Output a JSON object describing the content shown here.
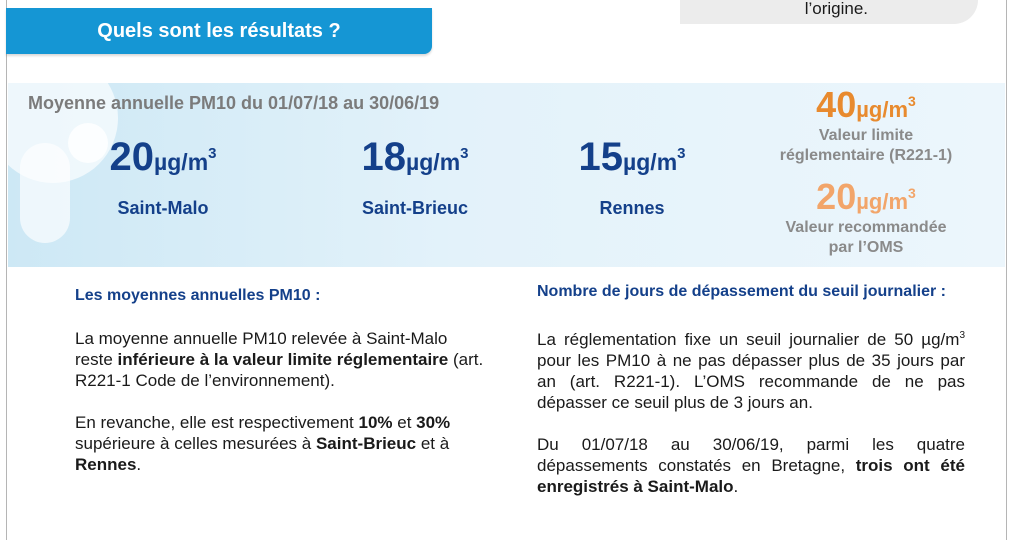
{
  "top_note": {
    "text": "l’origine."
  },
  "header": {
    "title": "Quels sont les résultats ?"
  },
  "band": {
    "title": "Moyenne annuelle PM10 du 01/07/18 au 30/06/19",
    "unit": "µg/m",
    "unit_exp": "3",
    "cities": [
      {
        "value": "20",
        "name": "Saint-Malo"
      },
      {
        "value": "18",
        "name": "Saint-Brieuc"
      },
      {
        "value": "15",
        "name": "Rennes"
      }
    ],
    "limit": {
      "value": "40",
      "label_1": "Valeur limite",
      "label_2": "réglementaire (R221-1)"
    },
    "who": {
      "value": "20",
      "label_1": "Valeur recommandée",
      "label_2": "par l’OMS"
    },
    "colors": {
      "city_blue": "#14408a",
      "limit_orange": "#e88a2e",
      "who_orange": "#f2a56a"
    }
  },
  "left": {
    "heading": "Les moyennes annuelles PM10 :",
    "p1_a": "La moyenne annuelle PM10 relevée à Saint-Malo reste ",
    "p1_b": "inférieure à la valeur limite réglementaire",
    "p1_c": " (art. R221-1 Code de l’environnement).",
    "p2_a": "En revanche, elle est respectivement ",
    "p2_b": "10%",
    "p2_c": " et ",
    "p2_d": "30%",
    "p2_e": " supérieure à celles mesurées à ",
    "p2_f": "Saint-Brieuc",
    "p2_g": " et à ",
    "p2_h": "Rennes",
    "p2_i": "."
  },
  "right": {
    "heading": "Nombre de jours de dépassement du seuil journalier :",
    "p1_a": "La réglementation fixe un seuil journalier de 50 µg/m",
    "p1_sup": "3",
    "p1_b": " pour les PM10 à ne pas dépasser plus de 35 jours par an (art. R221-1). L’OMS recommande de ne pas dépasser ce seuil plus de 3 jours an.",
    "p2_a": "Du 01/07/18 au 30/06/19, parmi les quatre dépassements constatés en Bretagne, ",
    "p2_b": "trois ont été enregistrés à Saint-Malo",
    "p2_c": "."
  }
}
